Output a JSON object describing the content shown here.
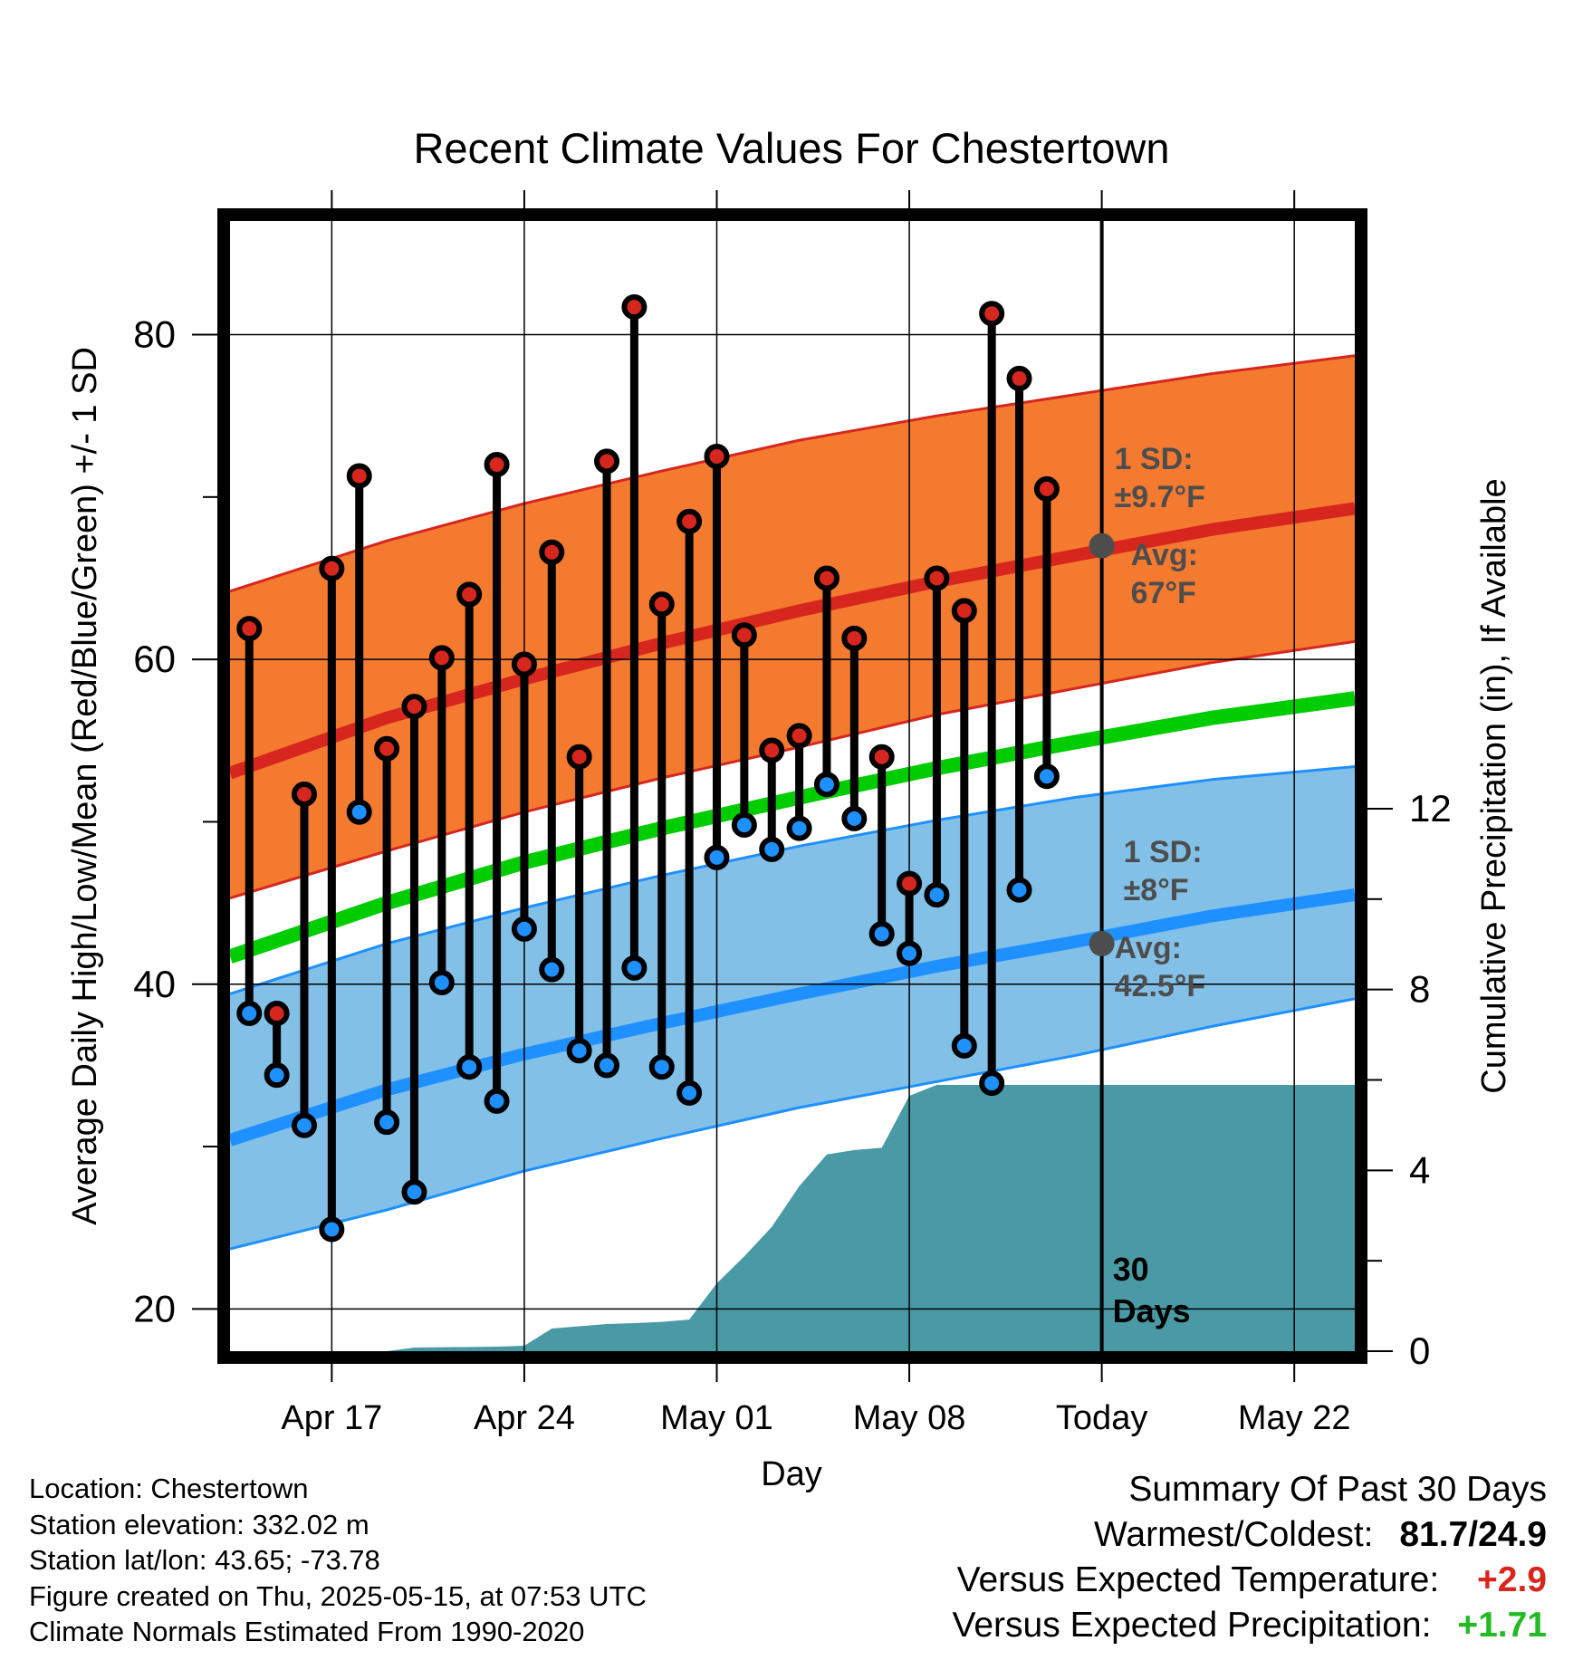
{
  "chart_data": {
    "type": "line",
    "title": "Recent Climate Values For Chestertown",
    "xlabel": "Day",
    "ylabel_left": "Average Daily High/Low/Mean (Red/Blue/Green) +/- 1 SD",
    "ylabel_right": "Cumulative Precipitation (in), If Available",
    "x_ticks": [
      {
        "day": 3,
        "label": "Apr 17"
      },
      {
        "day": 10,
        "label": "Apr 24"
      },
      {
        "day": 17,
        "label": "May 01"
      },
      {
        "day": 24,
        "label": "May 08"
      },
      {
        "day": 31,
        "label": "Today"
      },
      {
        "day": 38,
        "label": "May 22"
      }
    ],
    "xlim": [
      -0.7,
      40.2
    ],
    "ylim_left": [
      17.4,
      87
    ],
    "y_ticks_left": [
      20,
      40,
      60,
      80
    ],
    "ylim_right": [
      0,
      25
    ],
    "y_ticks_right": [
      0,
      4,
      8,
      12
    ],
    "today_day": 31,
    "observed": [
      {
        "day": 0,
        "high": 61.9,
        "low": 38.2
      },
      {
        "day": 1,
        "high": 38.2,
        "low": 34.4
      },
      {
        "day": 2,
        "high": 51.7,
        "low": 31.3
      },
      {
        "day": 3,
        "high": 65.6,
        "low": 24.9
      },
      {
        "day": 4,
        "high": 71.3,
        "low": 50.6
      },
      {
        "day": 5,
        "high": 54.5,
        "low": 31.5
      },
      {
        "day": 6,
        "high": 57.1,
        "low": 27.2
      },
      {
        "day": 7,
        "high": 60.1,
        "low": 40.1
      },
      {
        "day": 8,
        "high": 64.0,
        "low": 34.9
      },
      {
        "day": 9,
        "high": 72.0,
        "low": 32.8
      },
      {
        "day": 10,
        "high": 59.7,
        "low": 43.4
      },
      {
        "day": 11,
        "high": 66.6,
        "low": 40.9
      },
      {
        "day": 12,
        "high": 54.0,
        "low": 35.9
      },
      {
        "day": 13,
        "high": 72.2,
        "low": 35.0
      },
      {
        "day": 14,
        "high": 81.7,
        "low": 41.0
      },
      {
        "day": 15,
        "high": 63.4,
        "low": 34.9
      },
      {
        "day": 16,
        "high": 68.5,
        "low": 33.3
      },
      {
        "day": 17,
        "high": 72.5,
        "low": 47.8
      },
      {
        "day": 18,
        "high": 61.5,
        "low": 49.8
      },
      {
        "day": 19,
        "high": 54.4,
        "low": 48.3
      },
      {
        "day": 20,
        "high": 55.3,
        "low": 49.6
      },
      {
        "day": 21,
        "high": 65.0,
        "low": 52.3
      },
      {
        "day": 22,
        "high": 61.3,
        "low": 50.2
      },
      {
        "day": 23,
        "high": 54.0,
        "low": 43.1
      },
      {
        "day": 24,
        "high": 46.2,
        "low": 41.9
      },
      {
        "day": 25,
        "high": 65.0,
        "low": 45.5
      },
      {
        "day": 26,
        "high": 63.0,
        "low": 36.2
      },
      {
        "day": 27,
        "high": 81.3,
        "low": 33.9
      },
      {
        "day": 28,
        "high": 77.3,
        "low": 45.8
      },
      {
        "day": 29,
        "high": 70.5,
        "low": 52.8
      }
    ],
    "normals": {
      "days": [
        -0.7,
        5,
        10,
        15,
        20,
        25,
        30,
        35,
        40.2
      ],
      "high_mean": [
        53.0,
        56.4,
        58.8,
        61.0,
        63.0,
        64.8,
        66.4,
        68.0,
        69.3
      ],
      "high_upper": [
        64.2,
        67.3,
        69.6,
        71.6,
        73.5,
        75.0,
        76.3,
        77.6,
        78.7
      ],
      "high_lower": [
        45.3,
        48.2,
        50.6,
        52.7,
        54.6,
        56.6,
        58.2,
        59.8,
        61.1
      ],
      "mean": [
        41.7,
        45.0,
        47.5,
        49.6,
        51.5,
        53.3,
        54.9,
        56.4,
        57.6
      ],
      "low_mean": [
        30.4,
        33.5,
        35.7,
        37.6,
        39.4,
        41.1,
        42.6,
        44.2,
        45.5
      ],
      "low_upper": [
        39.4,
        42.5,
        44.7,
        46.7,
        48.5,
        50.1,
        51.5,
        52.6,
        53.4
      ],
      "low_lower": [
        23.7,
        26.1,
        28.5,
        30.5,
        32.4,
        34.0,
        35.6,
        37.4,
        39.1
      ]
    },
    "today_stats": {
      "high_sd_line1": "1 SD:",
      "high_sd_line2": "±9.7°F",
      "high_avg_line1": "Avg:",
      "high_avg_line2": "67°F",
      "high_avg_value": 67,
      "low_sd_line1": "1 SD:",
      "low_sd_line2": "±8°F",
      "low_avg_line1": "Avg:",
      "low_avg_line2": "42.5°F",
      "low_avg_value": 42.5,
      "window_line1": "30",
      "window_line2": "Days"
    },
    "precipitation": {
      "days": [
        -0.7,
        5,
        6,
        9,
        10,
        11,
        12,
        13,
        14,
        15,
        16,
        17,
        18,
        19,
        20,
        21,
        22,
        23,
        24,
        25,
        30,
        31,
        40.2
      ],
      "cumulative": [
        0.0,
        0.0,
        0.08,
        0.1,
        0.12,
        0.5,
        0.55,
        0.6,
        0.62,
        0.65,
        0.7,
        1.5,
        2.1,
        2.75,
        3.65,
        4.35,
        4.45,
        4.5,
        5.65,
        5.89,
        5.89,
        5.89,
        5.89
      ]
    },
    "colors": {
      "high_band": "#f47a30",
      "high_line": "#d7261e",
      "mean_line": "#00cc00",
      "low_band": "#82c0e8",
      "low_line": "#1e90ff",
      "precip": "#4a9aa5",
      "high_marker": "#d7261e",
      "low_marker": "#1e90ff",
      "annotation": "#4d4d4d"
    },
    "grid": true
  },
  "footer": {
    "location": "Location: Chestertown",
    "elevation": "Station elevation: 332.02 m",
    "latlon": "Station lat/lon: 43.65; -73.78",
    "created": "Figure created on Thu, 2025-05-15, at 07:53 UTC",
    "normals": "Climate Normals Estimated From 1990-2020"
  },
  "summary": {
    "title": "Summary Of Past 30 Days",
    "warmest_coldest_label": "Warmest/Coldest:",
    "warmest_coldest_value": "81.7/24.9",
    "temp_label": "Versus Expected Temperature:",
    "temp_value": "+2.9",
    "temp_color": "#d7261e",
    "precip_label": "Versus Expected Precipitation:",
    "precip_value": "+1.71",
    "precip_color": "#22bb22"
  }
}
